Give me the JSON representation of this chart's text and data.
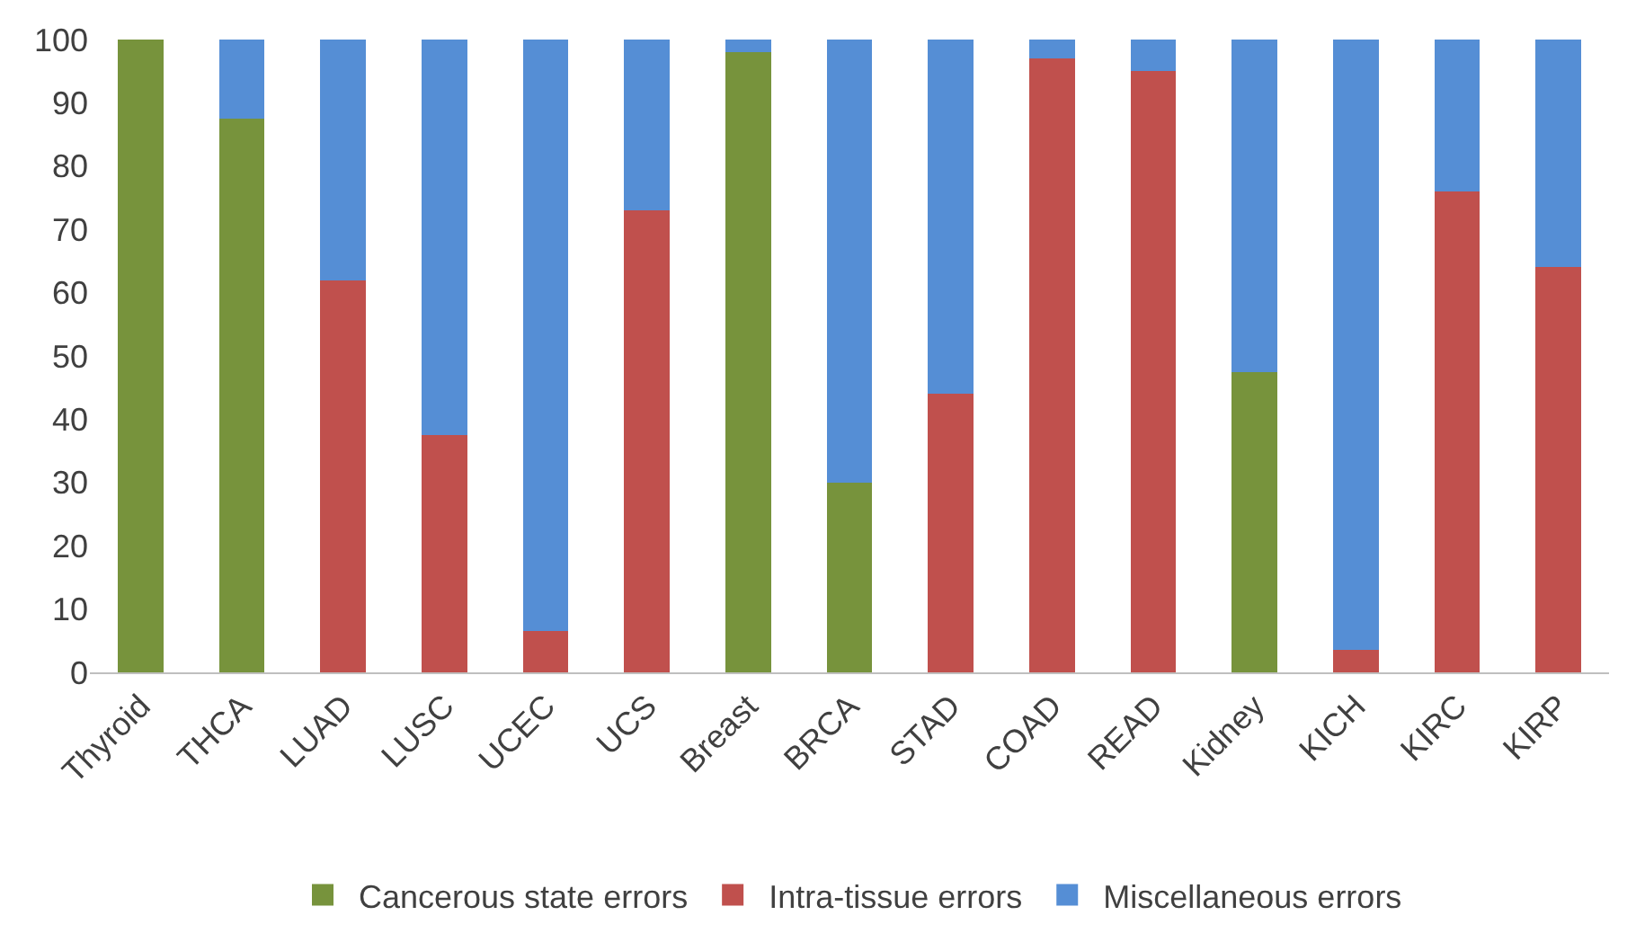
{
  "chart_data": {
    "type": "bar",
    "stacked": true,
    "categories": [
      "Thyroid",
      "THCA",
      "LUAD",
      "LUSC",
      "UCEC",
      "UCS",
      "Breast",
      "BRCA",
      "STAD",
      "COAD",
      "READ",
      "Kidney",
      "KICH",
      "KIRC",
      "KIRP"
    ],
    "series": [
      {
        "name": "Cancerous state errors",
        "color": "#77933c",
        "values": [
          100,
          87.5,
          0,
          0,
          0,
          0,
          98,
          30,
          0,
          0,
          0,
          47.5,
          0,
          0,
          0
        ]
      },
      {
        "name": "Intra-tissue errors",
        "color": "#c0504d",
        "values": [
          0,
          0,
          62,
          37.5,
          6.5,
          73,
          0,
          0,
          44,
          97,
          95,
          0,
          3.5,
          76,
          64
        ]
      },
      {
        "name": "Miscellaneous errors",
        "color": "#558ed5",
        "values": [
          0,
          12.5,
          38,
          62.5,
          93.5,
          27,
          2,
          70,
          56,
          3,
          5,
          52.5,
          96.5,
          24,
          36
        ]
      }
    ],
    "ylim": [
      0,
      100
    ],
    "yticks": [
      0,
      10,
      20,
      30,
      40,
      50,
      60,
      70,
      80,
      90,
      100
    ],
    "grid": false,
    "legend": "bottom"
  }
}
